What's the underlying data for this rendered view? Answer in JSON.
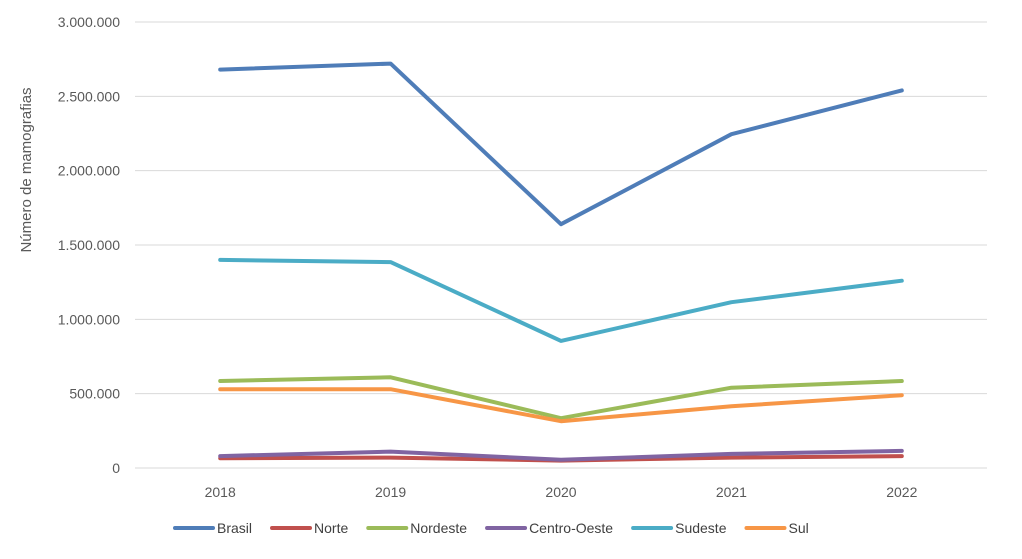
{
  "chart_data": {
    "type": "line",
    "title": "",
    "xlabel": "",
    "ylabel": "Número de mamografias",
    "categories": [
      "2018",
      "2019",
      "2020",
      "2021",
      "2022"
    ],
    "ylim": [
      0,
      3000000
    ],
    "yticks": [
      0,
      500000,
      1000000,
      1500000,
      2000000,
      2500000,
      3000000
    ],
    "ytick_labels": [
      "0",
      "500.000",
      "1.000.000",
      "1.500.000",
      "2.000.000",
      "2.500.000",
      "3.000.000"
    ],
    "grid": true,
    "legend_position": "bottom",
    "series": [
      {
        "name": "Brasil",
        "color": "#4f7db8",
        "values": [
          2680000,
          2720000,
          1640000,
          2245000,
          2540000
        ]
      },
      {
        "name": "Norte",
        "color": "#c0504d",
        "values": [
          65000,
          70000,
          50000,
          70000,
          80000
        ]
      },
      {
        "name": "Nordeste",
        "color": "#9bbb59",
        "values": [
          585000,
          610000,
          335000,
          540000,
          585000
        ]
      },
      {
        "name": "Centro-Oeste",
        "color": "#8064a2",
        "values": [
          80000,
          110000,
          55000,
          95000,
          115000
        ]
      },
      {
        "name": "Sudeste",
        "color": "#4bacc6",
        "values": [
          1400000,
          1385000,
          855000,
          1115000,
          1260000
        ]
      },
      {
        "name": "Sul",
        "color": "#f79646",
        "values": [
          530000,
          530000,
          315000,
          415000,
          490000
        ]
      }
    ]
  }
}
